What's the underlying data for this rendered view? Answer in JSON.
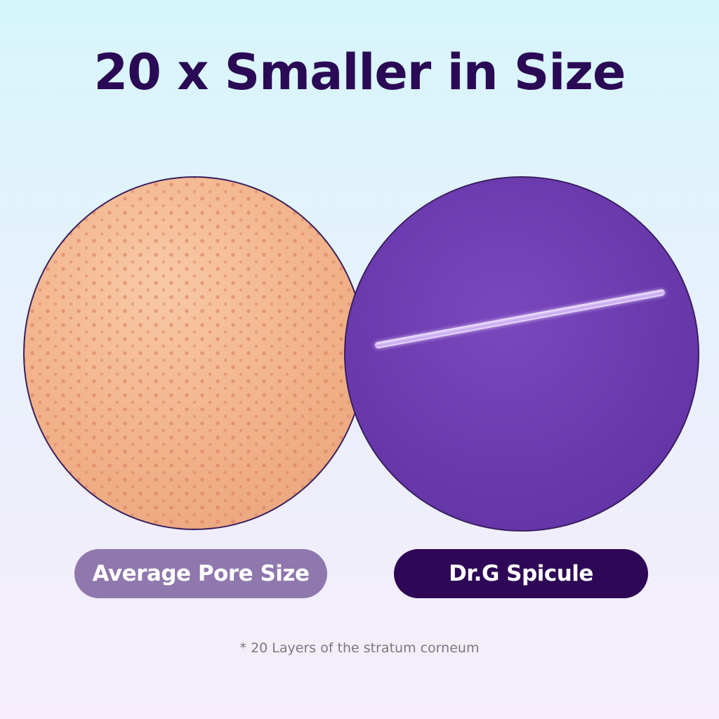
{
  "title": "20 x Smaller in Size",
  "labels": {
    "left": "Average Pore Size",
    "right": "Dr.G Spicule"
  },
  "footnote": "* 20 Layers of the stratum corneum",
  "colors": {
    "title": "#2a0a55",
    "left_pill": "#8f78ad",
    "right_pill": "#2e0756",
    "spicule_bg": "#6a3aad",
    "skin": "#f1b189"
  }
}
